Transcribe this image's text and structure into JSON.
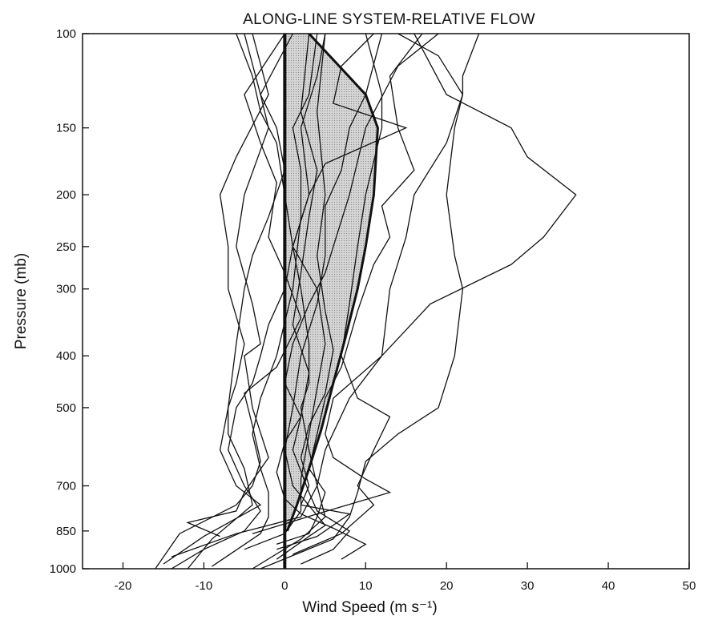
{
  "chart_data": {
    "type": "line",
    "title": "ALONG-LINE SYSTEM-RELATIVE FLOW",
    "xlabel": "Wind Speed (m s⁻¹)",
    "ylabel": "Pressure (mb)",
    "xlim": [
      -25,
      50
    ],
    "ylim": [
      1000,
      100
    ],
    "y_scale": "log (pressure)",
    "grid": false,
    "legend": "none",
    "x_ticks": [
      -20,
      -10,
      0,
      10,
      20,
      30,
      40,
      50
    ],
    "x_tick_labels": [
      "-20",
      "-10",
      "0",
      "10",
      "20",
      "30",
      "40",
      "50"
    ],
    "y_ticks": [
      100,
      150,
      200,
      250,
      300,
      400,
      500,
      700,
      850,
      1000
    ],
    "y_tick_labels": [
      "100",
      "150",
      "200",
      "250",
      "300",
      "400",
      "500",
      "700",
      "850",
      "1000"
    ],
    "colors": {
      "line": "#111111",
      "shade_fill": "#d4d4d4",
      "shade_dot": "#8a8a8a"
    },
    "zero_line_x": 0,
    "shaded_region": {
      "upper_bound": [
        [
          0,
          100
        ],
        [
          3,
          100
        ],
        [
          10,
          130
        ],
        [
          11.5,
          150
        ],
        [
          11,
          200
        ],
        [
          10,
          250
        ],
        [
          9,
          300
        ],
        [
          7.5,
          370
        ],
        [
          6,
          450
        ],
        [
          4.5,
          550
        ],
        [
          3,
          650
        ],
        [
          1.5,
          760
        ],
        [
          0.3,
          850
        ]
      ],
      "lower_bound": [
        [
          0,
          100
        ],
        [
          0,
          850
        ]
      ],
      "boundary_lines": [
        [
          [
            3,
            100
          ],
          [
            10,
            130
          ],
          [
            11.5,
            150
          ],
          [
            11,
            200
          ],
          [
            10,
            250
          ],
          [
            9,
            300
          ],
          [
            7.5,
            370
          ],
          [
            6,
            450
          ],
          [
            4.5,
            550
          ],
          [
            3,
            650
          ],
          [
            1.5,
            760
          ],
          [
            0.3,
            850
          ]
        ]
      ]
    },
    "series": [
      {
        "values": [
          [
            -6,
            100
          ],
          [
            -4,
            120
          ],
          [
            -3,
            140
          ],
          [
            -1,
            160
          ],
          [
            0,
            200
          ],
          [
            1,
            250
          ],
          [
            0,
            300
          ],
          [
            -2,
            350
          ],
          [
            -3,
            400
          ],
          [
            -4,
            450
          ],
          [
            -6,
            500
          ],
          [
            -7,
            600
          ],
          [
            -5,
            700
          ],
          [
            -3,
            780
          ],
          [
            -5,
            850
          ],
          [
            -10,
            920
          ],
          [
            -14,
            1000
          ]
        ]
      },
      {
        "values": [
          [
            -5,
            100
          ],
          [
            -3,
            130
          ],
          [
            -1,
            150
          ],
          [
            0,
            180
          ],
          [
            -2,
            220
          ],
          [
            -4,
            260
          ],
          [
            -5,
            300
          ],
          [
            -6,
            380
          ],
          [
            -7,
            500
          ],
          [
            -8,
            600
          ],
          [
            -6,
            700
          ],
          [
            -3,
            760
          ],
          [
            -10,
            870
          ],
          [
            -15,
            980
          ]
        ]
      },
      {
        "values": [
          [
            5,
            100
          ],
          [
            4,
            120
          ],
          [
            2,
            150
          ],
          [
            3,
            200
          ],
          [
            1,
            250
          ],
          [
            2,
            300
          ],
          [
            3,
            380
          ],
          [
            3,
            450
          ],
          [
            2,
            500
          ],
          [
            3,
            600
          ],
          [
            4,
            700
          ],
          [
            5,
            800
          ],
          [
            2,
            880
          ],
          [
            -4,
            1000
          ]
        ]
      },
      {
        "values": [
          [
            -4,
            100
          ],
          [
            -2,
            130
          ],
          [
            -6,
            170
          ],
          [
            -8,
            200
          ],
          [
            -7,
            250
          ],
          [
            -7,
            300
          ],
          [
            -5,
            380
          ],
          [
            -6,
            450
          ],
          [
            -7,
            500
          ],
          [
            -7,
            560
          ],
          [
            -5,
            650
          ],
          [
            -4,
            760
          ],
          [
            -9,
            880
          ],
          [
            -12,
            1000
          ]
        ]
      },
      {
        "values": [
          [
            12,
            100
          ],
          [
            10,
            130
          ],
          [
            8,
            150
          ],
          [
            7,
            180
          ],
          [
            5,
            210
          ],
          [
            5,
            260
          ],
          [
            4,
            320
          ],
          [
            2,
            400
          ],
          [
            1,
            500
          ],
          [
            0,
            600
          ],
          [
            1,
            700
          ],
          [
            5,
            830
          ],
          [
            3,
            870
          ],
          [
            -1,
            960
          ]
        ]
      },
      {
        "values": [
          [
            4,
            100
          ],
          [
            3,
            130
          ],
          [
            1,
            150
          ],
          [
            2,
            180
          ],
          [
            2,
            220
          ],
          [
            1,
            300
          ],
          [
            -1,
            400
          ],
          [
            -3,
            480
          ],
          [
            -4,
            560
          ],
          [
            -3,
            650
          ],
          [
            -2,
            720
          ],
          [
            -2,
            800
          ],
          [
            -3,
            860
          ],
          [
            -9,
            990
          ]
        ]
      },
      {
        "values": [
          [
            14,
            100
          ],
          [
            19,
            110
          ],
          [
            22,
            130
          ],
          [
            21,
            150
          ],
          [
            20,
            200
          ],
          [
            21,
            260
          ],
          [
            22,
            300
          ],
          [
            21,
            400
          ],
          [
            19,
            500
          ],
          [
            14,
            560
          ],
          [
            10,
            630
          ],
          [
            9,
            720
          ],
          [
            8,
            800
          ],
          [
            6,
            880
          ],
          [
            -3,
            1000
          ]
        ]
      },
      {
        "values": [
          [
            11,
            100
          ],
          [
            7,
            115
          ],
          [
            6,
            135
          ],
          [
            15,
            150
          ],
          [
            5,
            175
          ],
          [
            3,
            200
          ],
          [
            1,
            250
          ],
          [
            4,
            300
          ],
          [
            5,
            380
          ],
          [
            4,
            460
          ],
          [
            3,
            560
          ],
          [
            2,
            680
          ],
          [
            2,
            780
          ],
          [
            0,
            860
          ],
          [
            -5,
            920
          ]
        ]
      },
      {
        "values": [
          [
            19,
            100
          ],
          [
            14,
            115
          ],
          [
            10,
            150
          ],
          [
            8,
            200
          ],
          [
            6,
            250
          ],
          [
            5,
            280
          ],
          [
            3,
            320
          ],
          [
            1,
            380
          ],
          [
            0,
            450
          ],
          [
            2,
            520
          ],
          [
            1,
            600
          ],
          [
            3,
            720
          ],
          [
            4,
            780
          ],
          [
            8,
            850
          ],
          [
            6,
            920
          ],
          [
            2,
            980
          ]
        ]
      },
      {
        "values": [
          [
            16,
            100
          ],
          [
            20,
            130
          ],
          [
            28,
            150
          ],
          [
            30,
            170
          ],
          [
            36,
            200
          ],
          [
            32,
            240
          ],
          [
            28,
            270
          ],
          [
            18,
            320
          ],
          [
            12,
            400
          ],
          [
            8,
            480
          ],
          [
            5,
            600
          ],
          [
            4,
            700
          ],
          [
            2,
            800
          ],
          [
            -6,
            860
          ],
          [
            -14,
            950
          ]
        ]
      },
      {
        "values": [
          [
            24,
            100
          ],
          [
            22,
            120
          ],
          [
            22,
            130
          ],
          [
            20,
            160
          ],
          [
            16,
            200
          ],
          [
            15,
            240
          ],
          [
            13,
            300
          ],
          [
            12,
            400
          ],
          [
            6,
            480
          ],
          [
            5,
            560
          ],
          [
            6,
            620
          ],
          [
            10,
            680
          ],
          [
            13,
            720
          ],
          [
            4,
            790
          ],
          [
            -4,
            860
          ]
        ]
      },
      {
        "values": [
          [
            10,
            100
          ],
          [
            12,
            130
          ],
          [
            12,
            150
          ],
          [
            10,
            200
          ],
          [
            9,
            250
          ],
          [
            8,
            320
          ],
          [
            7,
            400
          ],
          [
            9,
            480
          ],
          [
            13,
            520
          ],
          [
            11,
            600
          ],
          [
            9,
            700
          ],
          [
            11,
            760
          ],
          [
            7,
            860
          ],
          [
            1,
            940
          ]
        ]
      },
      {
        "values": [
          [
            17,
            100
          ],
          [
            13,
            120
          ],
          [
            14,
            150
          ],
          [
            16,
            180
          ],
          [
            12,
            210
          ],
          [
            13,
            240
          ],
          [
            11,
            270
          ],
          [
            9,
            330
          ],
          [
            7,
            420
          ],
          [
            5,
            480
          ],
          [
            4,
            560
          ],
          [
            3,
            650
          ],
          [
            5,
            720
          ],
          [
            4,
            800
          ],
          [
            3,
            860
          ],
          [
            -1,
            900
          ]
        ]
      },
      {
        "values": [
          [
            1,
            100
          ],
          [
            -3,
            130
          ],
          [
            -2,
            150
          ],
          [
            -5,
            200
          ],
          [
            -6,
            250
          ],
          [
            -4,
            320
          ],
          [
            -3,
            380
          ],
          [
            -5,
            400
          ],
          [
            -4,
            500
          ],
          [
            -2,
            620
          ],
          [
            -5,
            720
          ],
          [
            -6,
            780
          ],
          [
            -12,
            820
          ],
          [
            -8,
            870
          ]
        ]
      },
      {
        "values": [
          [
            3,
            100
          ],
          [
            2,
            140
          ],
          [
            4,
            180
          ],
          [
            3,
            220
          ],
          [
            2,
            280
          ],
          [
            1,
            350
          ],
          [
            3,
            430
          ],
          [
            2,
            520
          ],
          [
            0,
            580
          ],
          [
            -1,
            660
          ],
          [
            0,
            740
          ],
          [
            2,
            790
          ],
          [
            6,
            840
          ],
          [
            10,
            900
          ],
          [
            7,
            960
          ]
        ]
      },
      {
        "values": [
          [
            0,
            100
          ],
          [
            -5,
            130
          ],
          [
            -3,
            160
          ],
          [
            -1,
            190
          ],
          [
            -2,
            240
          ],
          [
            0,
            280
          ],
          [
            2,
            340
          ],
          [
            -1,
            420
          ],
          [
            -5,
            470
          ],
          [
            -4,
            540
          ],
          [
            -3,
            630
          ],
          [
            -4,
            700
          ],
          [
            -6,
            760
          ],
          [
            -13,
            860
          ],
          [
            -16,
            1000
          ]
        ]
      },
      {
        "values": [
          [
            5,
            100
          ],
          [
            4,
            140
          ],
          [
            5,
            200
          ],
          [
            4,
            260
          ],
          [
            5,
            330
          ],
          [
            6,
            390
          ],
          [
            5,
            470
          ],
          [
            3,
            540
          ],
          [
            2,
            620
          ],
          [
            3,
            700
          ],
          [
            2,
            760
          ],
          [
            8,
            790
          ],
          [
            4,
            870
          ],
          [
            -1,
            920
          ]
        ]
      }
    ]
  }
}
